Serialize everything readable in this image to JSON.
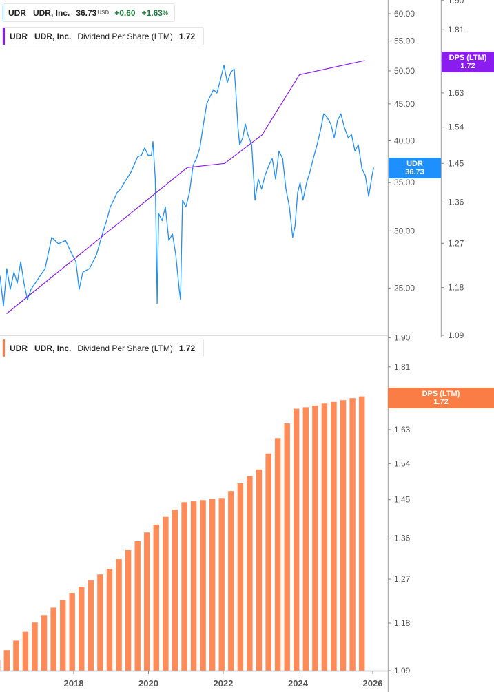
{
  "legend_price": {
    "symbol": "UDR",
    "name": "UDR, Inc.",
    "price": "36.73",
    "currency": "USD",
    "change": "+0.60",
    "change_pct": "+1.63",
    "pct_sign": "%"
  },
  "legend_dps_top": {
    "symbol": "UDR",
    "name": "UDR, Inc.",
    "metric": "Dividend Per Share (LTM)",
    "value": "1.72"
  },
  "legend_dps_bottom": {
    "symbol": "UDR",
    "name": "UDR, Inc.",
    "metric": "Dividend Per Share (LTM)",
    "value": "1.72"
  },
  "tags": {
    "price": {
      "label": "UDR",
      "value": "36.73"
    },
    "dps_top": {
      "label": "DPS (LTM)",
      "value": "1.72"
    },
    "dps_bottom": {
      "label": "DPS (LTM)",
      "value": "1.72"
    }
  },
  "colors": {
    "price": "#1e8fff",
    "dps_line": "#8a1cf0",
    "dps_bars": "#ff8c58",
    "dps_tag": "#fa7d45",
    "up": "#1a7f3c",
    "axis": "#b0b0b0"
  },
  "chart_data": [
    {
      "type": "line",
      "scale": "log",
      "series": [
        {
          "name": "UDR",
          "axis": "left",
          "values": [
            [
              "2016-01-11",
              26.0
            ],
            [
              "2016-02-14",
              23.6
            ],
            [
              "2016-03-17",
              26.6
            ],
            [
              "2016-04-20",
              24.9
            ],
            [
              "2016-05-26",
              26.3
            ],
            [
              "2016-06-28",
              25.4
            ],
            [
              "2016-07-31",
              27.2
            ],
            [
              "2016-09-02",
              25.4
            ],
            [
              "2016-10-05",
              24.1
            ],
            [
              "2016-11-10",
              24.9
            ],
            [
              "2017-01-15",
              25.7
            ],
            [
              "2017-03-25",
              26.6
            ],
            [
              "2017-05-30",
              29.4
            ],
            [
              "2017-08-04",
              28.8
            ],
            [
              "2017-10-12",
              29.1
            ],
            [
              "2017-12-17",
              27.8
            ],
            [
              "2018-01-22",
              27.2
            ],
            [
              "2018-02-24",
              24.9
            ],
            [
              "2018-03-29",
              26.3
            ],
            [
              "2018-06-03",
              26.6
            ],
            [
              "2018-08-10",
              27.8
            ],
            [
              "2018-10-16",
              30.0
            ],
            [
              "2018-11-18",
              31.0
            ],
            [
              "2018-12-24",
              32.4
            ],
            [
              "2019-01-26",
              33.1
            ],
            [
              "2019-02-28",
              33.9
            ],
            [
              "2019-04-02",
              34.3
            ],
            [
              "2019-05-08",
              35.0
            ],
            [
              "2019-07-13",
              36.2
            ],
            [
              "2019-09-17",
              38.0
            ],
            [
              "2019-10-23",
              38.2
            ],
            [
              "2019-11-25",
              39.1
            ],
            [
              "2019-12-28",
              38.2
            ],
            [
              "2020-01-30",
              38.2
            ],
            [
              "2020-02-14",
              39.9
            ],
            [
              "2020-03-07",
              35.4
            ],
            [
              "2020-03-25",
              23.8
            ],
            [
              "2020-04-09",
              31.7
            ],
            [
              "2020-05-12",
              31.0
            ],
            [
              "2020-06-14",
              32.4
            ],
            [
              "2020-07-17",
              29.1
            ],
            [
              "2020-08-22",
              29.7
            ],
            [
              "2020-09-24",
              27.8
            ],
            [
              "2020-10-27",
              24.9
            ],
            [
              "2020-11-10",
              24.1
            ],
            [
              "2020-11-29",
              33.1
            ],
            [
              "2021-01-01",
              32.4
            ],
            [
              "2021-02-06",
              33.9
            ],
            [
              "2021-03-11",
              37.0
            ],
            [
              "2021-04-13",
              37.8
            ],
            [
              "2021-05-16",
              39.1
            ],
            [
              "2021-06-21",
              42.2
            ],
            [
              "2021-07-24",
              45.1
            ],
            [
              "2021-08-26",
              46.1
            ],
            [
              "2021-09-28",
              47.1
            ],
            [
              "2021-10-31",
              46.6
            ],
            [
              "2021-12-06",
              48.7
            ],
            [
              "2022-01-08",
              50.9
            ],
            [
              "2022-02-10",
              48.2
            ],
            [
              "2022-03-15",
              49.8
            ],
            [
              "2022-04-17",
              50.3
            ],
            [
              "2022-05-01",
              47.1
            ],
            [
              "2022-05-23",
              41.7
            ],
            [
              "2022-06-10",
              39.5
            ],
            [
              "2022-07-09",
              40.4
            ],
            [
              "2022-08-04",
              42.2
            ],
            [
              "2022-08-29",
              40.8
            ],
            [
              "2022-10-05",
              39.5
            ],
            [
              "2022-11-07",
              33.1
            ],
            [
              "2022-12-09",
              35.4
            ],
            [
              "2023-01-11",
              34.3
            ],
            [
              "2023-02-13",
              35.8
            ],
            [
              "2023-03-21",
              37.0
            ],
            [
              "2023-04-23",
              37.8
            ],
            [
              "2023-05-26",
              35.4
            ],
            [
              "2023-06-28",
              38.7
            ],
            [
              "2023-08-03",
              37.8
            ],
            [
              "2023-09-05",
              34.3
            ],
            [
              "2023-10-08",
              32.4
            ],
            [
              "2023-11-10",
              29.4
            ],
            [
              "2023-12-02",
              30.4
            ],
            [
              "2023-12-28",
              33.9
            ],
            [
              "2024-01-22",
              35.0
            ],
            [
              "2024-02-20",
              33.1
            ],
            [
              "2024-03-24",
              35.0
            ],
            [
              "2024-04-26",
              36.2
            ],
            [
              "2024-05-29",
              37.8
            ],
            [
              "2024-07-05",
              39.5
            ],
            [
              "2024-08-07",
              41.3
            ],
            [
              "2024-09-09",
              43.6
            ],
            [
              "2024-10-12",
              43.1
            ],
            [
              "2024-11-17",
              42.2
            ],
            [
              "2024-12-20",
              40.4
            ],
            [
              "2025-01-22",
              42.7
            ],
            [
              "2025-02-24",
              43.6
            ],
            [
              "2025-03-29",
              41.7
            ],
            [
              "2025-05-05",
              40.4
            ],
            [
              "2025-06-07",
              40.8
            ],
            [
              "2025-07-10",
              38.7
            ],
            [
              "2025-08-12",
              39.5
            ],
            [
              "2025-09-17",
              36.6
            ],
            [
              "2025-10-20",
              35.8
            ],
            [
              "2025-11-22",
              33.5
            ],
            [
              "2025-12-25",
              35.8
            ],
            [
              "2026-01-10",
              36.73
            ]
          ]
        },
        {
          "name": "Dividend Per Share (LTM)",
          "axis": "right",
          "values": [
            [
              "2016-03-15",
              1.13
            ],
            [
              "2021-01-15",
              1.44
            ],
            [
              "2022-01-15",
              1.45
            ],
            [
              "2023-01-15",
              1.52
            ],
            [
              "2024-01-15",
              1.68
            ],
            [
              "2025-10-15",
              1.72
            ]
          ]
        }
      ],
      "y_left": {
        "ticks": [
          "25.00",
          "30.00",
          "35.00",
          "40.00",
          "45.00",
          "50.00",
          "55.00",
          "60.00"
        ],
        "range": [
          22.5,
          63
        ]
      },
      "y_right": {
        "ticks": [
          "1.09",
          "1.18",
          "1.27",
          "1.36",
          "1.45",
          "1.54",
          "1.63",
          "1.72",
          "1.81",
          "1.90"
        ],
        "range": [
          1.09,
          1.9
        ]
      }
    },
    {
      "type": "bar",
      "scale": "log",
      "series": [
        {
          "name": "Dividend Per Share (LTM)",
          "categories": [
            "2015-12",
            "2016-03",
            "2016-06",
            "2016-09",
            "2016-12",
            "2017-03",
            "2017-06",
            "2017-09",
            "2017-12",
            "2018-03",
            "2018-06",
            "2018-09",
            "2018-12",
            "2019-03",
            "2019-06",
            "2019-09",
            "2019-12",
            "2020-03",
            "2020-06",
            "2020-09",
            "2020-12",
            "2021-03",
            "2021-06",
            "2021-09",
            "2021-12",
            "2022-03",
            "2022-06",
            "2022-09",
            "2022-12",
            "2023-03",
            "2023-06",
            "2023-09",
            "2023-12",
            "2024-03",
            "2024-06",
            "2024-09",
            "2024-12",
            "2025-03",
            "2025-06",
            "2025-09"
          ],
          "values": [
            1.11,
            1.128,
            1.146,
            1.163,
            1.181,
            1.196,
            1.211,
            1.226,
            1.241,
            1.254,
            1.267,
            1.28,
            1.292,
            1.313,
            1.333,
            1.353,
            1.373,
            1.391,
            1.409,
            1.426,
            1.444,
            1.446,
            1.449,
            1.452,
            1.454,
            1.471,
            1.49,
            1.508,
            1.525,
            1.566,
            1.607,
            1.647,
            1.688,
            1.692,
            1.697,
            1.702,
            1.707,
            1.712,
            1.718,
            1.723
          ]
        }
      ],
      "y": {
        "ticks": [
          "1.09",
          "1.18",
          "1.27",
          "1.36",
          "1.45",
          "1.54",
          "1.63",
          "1.72",
          "1.81",
          "1.90"
        ],
        "range": [
          1.09,
          1.9
        ]
      },
      "x": {
        "ticks": [
          "2018",
          "2020",
          "2022",
          "2024",
          "2026"
        ]
      }
    }
  ]
}
